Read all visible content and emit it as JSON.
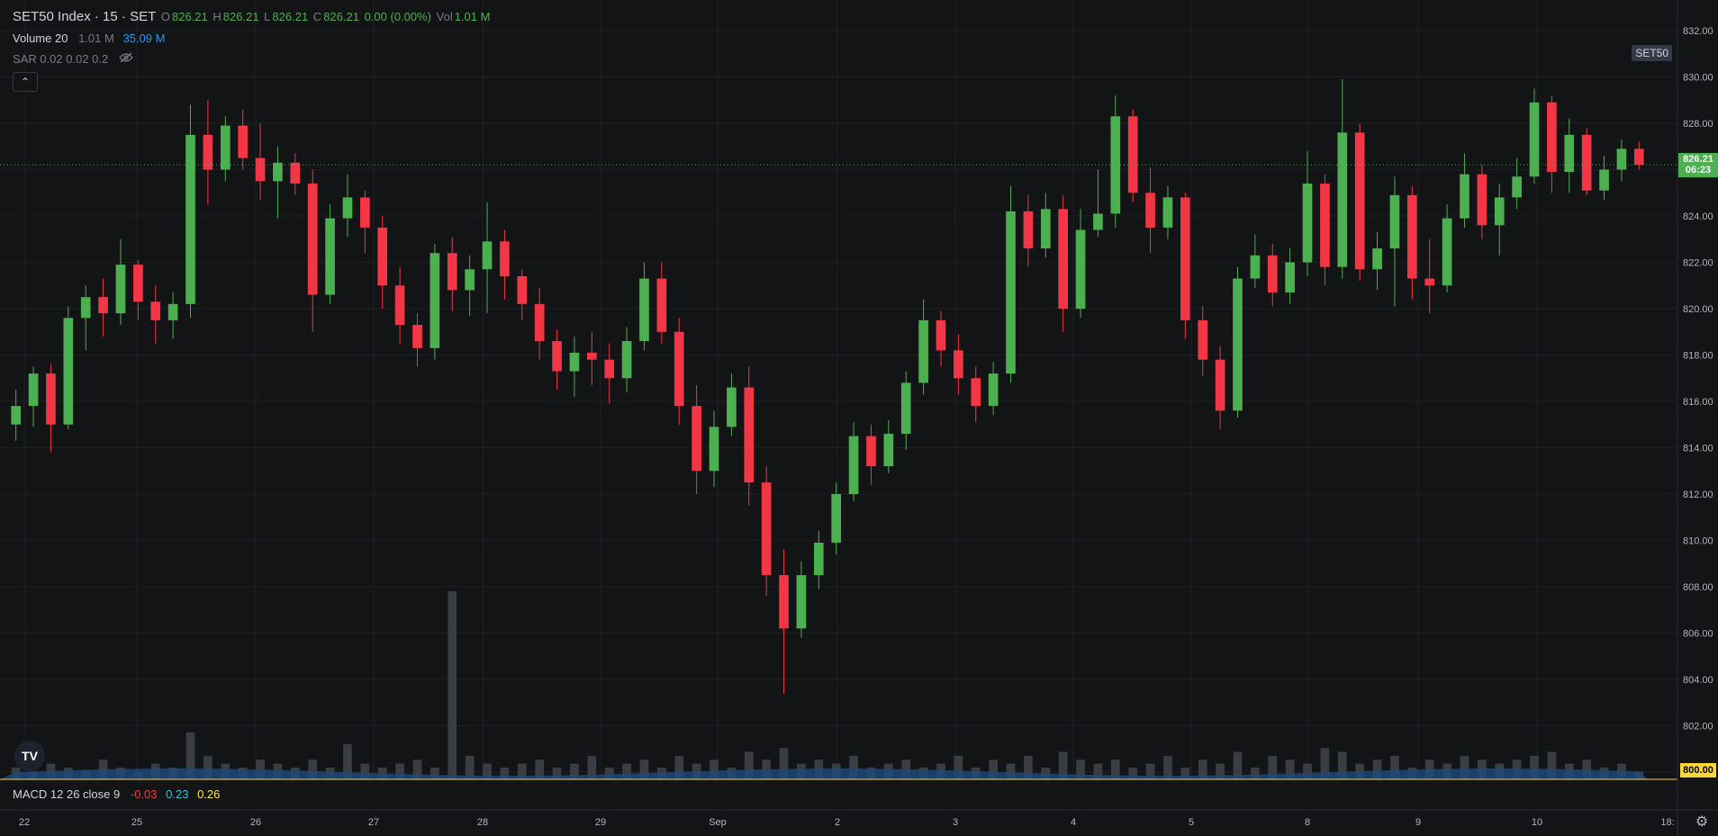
{
  "header": {
    "symbol_title": "SET50 Index · 15 · SET",
    "ohlc": {
      "o_label": "O",
      "o_value": "826.21",
      "h_label": "H",
      "h_value": "826.21",
      "l_label": "L",
      "l_value": "826.21",
      "c_label": "C",
      "c_value": "826.21",
      "change": "0.00 (0.00%)",
      "vol_label": "Vol",
      "vol_value": "1.01 M"
    },
    "volume_indicator": {
      "label": "Volume 20",
      "value1": "1.01 M",
      "value2": "35.09 M"
    },
    "sar_indicator": {
      "label": "SAR 0.02 0.02 0.2"
    },
    "collapse_icon": "chevron-up-icon",
    "symbol_tag": "SET50"
  },
  "macd": {
    "label": "MACD 12 26 close 9",
    "v1": "-0.03",
    "v2": "0.23",
    "v3": "0.26"
  },
  "price_label": {
    "price": "826.21",
    "countdown": "06:23"
  },
  "volume_axis_label": "800.00",
  "colors": {
    "up": "#4caf50",
    "down": "#f23645",
    "volume_ma": "#2962ff",
    "background": "#131416",
    "grid": "#1f2226",
    "accent": "#4caf50"
  },
  "chart_data": {
    "type": "candlestick",
    "title": "SET50 Index · 15 · SET",
    "ylim": [
      800,
      833
    ],
    "yticks": [
      "832.00",
      "830.00",
      "828.00",
      "826.00",
      "824.00",
      "822.00",
      "820.00",
      "818.00",
      "816.00",
      "814.00",
      "812.00",
      "810.00",
      "808.00",
      "806.00",
      "804.00",
      "802.00",
      "800.00"
    ],
    "xticks": [
      "22",
      "25",
      "26",
      "27",
      "28",
      "29",
      "Sep",
      "2",
      "3",
      "4",
      "5",
      "8",
      "9",
      "10",
      "18:"
    ],
    "current_price": 826.21,
    "series": [
      {
        "values": [
          {
            "o": 815.0,
            "h": 816.5,
            "l": 814.3,
            "c": 815.8
          },
          {
            "o": 815.8,
            "h": 817.5,
            "l": 814.9,
            "c": 817.2
          },
          {
            "o": 817.2,
            "h": 817.6,
            "l": 813.8,
            "c": 815.0
          },
          {
            "o": 815.0,
            "h": 820.1,
            "l": 814.8,
            "c": 819.6
          },
          {
            "o": 819.6,
            "h": 821.0,
            "l": 818.2,
            "c": 820.5
          },
          {
            "o": 820.5,
            "h": 821.3,
            "l": 818.8,
            "c": 819.8
          },
          {
            "o": 819.8,
            "h": 823.0,
            "l": 819.3,
            "c": 821.9
          },
          {
            "o": 821.9,
            "h": 822.1,
            "l": 819.5,
            "c": 820.3
          },
          {
            "o": 820.3,
            "h": 821.0,
            "l": 818.5,
            "c": 819.5
          },
          {
            "o": 819.5,
            "h": 820.7,
            "l": 818.7,
            "c": 820.2
          },
          {
            "o": 820.2,
            "h": 828.8,
            "l": 819.6,
            "c": 827.5
          },
          {
            "o": 827.5,
            "h": 829.0,
            "l": 824.5,
            "c": 826.0
          },
          {
            "o": 826.0,
            "h": 828.3,
            "l": 825.5,
            "c": 827.9
          },
          {
            "o": 827.9,
            "h": 828.6,
            "l": 826.0,
            "c": 826.5
          },
          {
            "o": 826.5,
            "h": 828.0,
            "l": 824.7,
            "c": 825.5
          },
          {
            "o": 825.5,
            "h": 827.0,
            "l": 823.9,
            "c": 826.3
          },
          {
            "o": 826.3,
            "h": 826.7,
            "l": 824.9,
            "c": 825.4
          },
          {
            "o": 825.4,
            "h": 826.0,
            "l": 819.0,
            "c": 820.6
          },
          {
            "o": 820.6,
            "h": 824.5,
            "l": 820.2,
            "c": 823.9
          },
          {
            "o": 823.9,
            "h": 825.8,
            "l": 823.1,
            "c": 824.8
          },
          {
            "o": 824.8,
            "h": 825.1,
            "l": 822.4,
            "c": 823.5
          },
          {
            "o": 823.5,
            "h": 824.0,
            "l": 820.0,
            "c": 821.0
          },
          {
            "o": 821.0,
            "h": 821.8,
            "l": 818.5,
            "c": 819.3
          },
          {
            "o": 819.3,
            "h": 819.8,
            "l": 817.5,
            "c": 818.3
          },
          {
            "o": 818.3,
            "h": 822.8,
            "l": 817.8,
            "c": 822.4
          },
          {
            "o": 822.4,
            "h": 823.1,
            "l": 819.9,
            "c": 820.8
          },
          {
            "o": 820.8,
            "h": 822.3,
            "l": 819.7,
            "c": 821.7
          },
          {
            "o": 821.7,
            "h": 824.6,
            "l": 819.8,
            "c": 822.9
          },
          {
            "o": 822.9,
            "h": 823.4,
            "l": 820.4,
            "c": 821.4
          },
          {
            "o": 821.4,
            "h": 821.7,
            "l": 819.5,
            "c": 820.2
          },
          {
            "o": 820.2,
            "h": 820.9,
            "l": 817.8,
            "c": 818.6
          },
          {
            "o": 818.6,
            "h": 819.1,
            "l": 816.5,
            "c": 817.3
          },
          {
            "o": 817.3,
            "h": 818.8,
            "l": 816.2,
            "c": 818.1
          },
          {
            "o": 818.1,
            "h": 819.0,
            "l": 816.7,
            "c": 817.8
          },
          {
            "o": 817.8,
            "h": 818.5,
            "l": 815.9,
            "c": 817.0
          },
          {
            "o": 817.0,
            "h": 819.2,
            "l": 816.4,
            "c": 818.6
          },
          {
            "o": 818.6,
            "h": 822.0,
            "l": 818.2,
            "c": 821.3
          },
          {
            "o": 821.3,
            "h": 822.0,
            "l": 818.5,
            "c": 819.0
          },
          {
            "o": 819.0,
            "h": 819.6,
            "l": 815.0,
            "c": 815.8
          },
          {
            "o": 815.8,
            "h": 816.7,
            "l": 812.0,
            "c": 813.0
          },
          {
            "o": 813.0,
            "h": 815.6,
            "l": 812.3,
            "c": 814.9
          },
          {
            "o": 814.9,
            "h": 817.2,
            "l": 814.5,
            "c": 816.6
          },
          {
            "o": 816.6,
            "h": 817.5,
            "l": 811.5,
            "c": 812.5
          },
          {
            "o": 812.5,
            "h": 813.2,
            "l": 807.6,
            "c": 808.5
          },
          {
            "o": 808.5,
            "h": 809.6,
            "l": 803.4,
            "c": 806.2
          },
          {
            "o": 806.2,
            "h": 809.1,
            "l": 805.8,
            "c": 808.5
          },
          {
            "o": 808.5,
            "h": 810.4,
            "l": 807.9,
            "c": 809.9
          },
          {
            "o": 809.9,
            "h": 812.5,
            "l": 809.4,
            "c": 812.0
          },
          {
            "o": 812.0,
            "h": 815.1,
            "l": 811.7,
            "c": 814.5
          },
          {
            "o": 814.5,
            "h": 815.0,
            "l": 812.4,
            "c": 813.2
          },
          {
            "o": 813.2,
            "h": 815.2,
            "l": 812.9,
            "c": 814.6
          },
          {
            "o": 814.6,
            "h": 817.3,
            "l": 813.9,
            "c": 816.8
          },
          {
            "o": 816.8,
            "h": 820.4,
            "l": 816.3,
            "c": 819.5
          },
          {
            "o": 819.5,
            "h": 819.9,
            "l": 817.5,
            "c": 818.2
          },
          {
            "o": 818.2,
            "h": 818.9,
            "l": 816.3,
            "c": 817.0
          },
          {
            "o": 817.0,
            "h": 817.5,
            "l": 815.1,
            "c": 815.8
          },
          {
            "o": 815.8,
            "h": 817.7,
            "l": 815.4,
            "c": 817.2
          },
          {
            "o": 817.2,
            "h": 825.3,
            "l": 816.8,
            "c": 824.2
          },
          {
            "o": 824.2,
            "h": 824.9,
            "l": 821.8,
            "c": 822.6
          },
          {
            "o": 822.6,
            "h": 825.0,
            "l": 822.2,
            "c": 824.3
          },
          {
            "o": 824.3,
            "h": 824.9,
            "l": 819.0,
            "c": 820.0
          },
          {
            "o": 820.0,
            "h": 824.3,
            "l": 819.6,
            "c": 823.4
          },
          {
            "o": 823.4,
            "h": 826.0,
            "l": 823.1,
            "c": 824.1
          },
          {
            "o": 824.1,
            "h": 829.2,
            "l": 823.5,
            "c": 828.3
          },
          {
            "o": 828.3,
            "h": 828.6,
            "l": 824.6,
            "c": 825.0
          },
          {
            "o": 825.0,
            "h": 826.1,
            "l": 822.4,
            "c": 823.5
          },
          {
            "o": 823.5,
            "h": 825.3,
            "l": 823.0,
            "c": 824.8
          },
          {
            "o": 824.8,
            "h": 825.0,
            "l": 818.7,
            "c": 819.5
          },
          {
            "o": 819.5,
            "h": 820.1,
            "l": 817.1,
            "c": 817.8
          },
          {
            "o": 817.8,
            "h": 818.4,
            "l": 814.8,
            "c": 815.6
          },
          {
            "o": 815.6,
            "h": 821.8,
            "l": 815.3,
            "c": 821.3
          },
          {
            "o": 821.3,
            "h": 823.2,
            "l": 820.9,
            "c": 822.3
          },
          {
            "o": 822.3,
            "h": 822.8,
            "l": 820.1,
            "c": 820.7
          },
          {
            "o": 820.7,
            "h": 822.6,
            "l": 820.2,
            "c": 822.0
          },
          {
            "o": 822.0,
            "h": 826.8,
            "l": 821.4,
            "c": 825.4
          },
          {
            "o": 825.4,
            "h": 825.8,
            "l": 821.0,
            "c": 821.8
          },
          {
            "o": 821.8,
            "h": 829.9,
            "l": 821.3,
            "c": 827.6
          },
          {
            "o": 827.6,
            "h": 828.0,
            "l": 821.2,
            "c": 821.7
          },
          {
            "o": 821.7,
            "h": 823.3,
            "l": 820.8,
            "c": 822.6
          },
          {
            "o": 822.6,
            "h": 825.7,
            "l": 820.1,
            "c": 824.9
          },
          {
            "o": 824.9,
            "h": 825.3,
            "l": 820.4,
            "c": 821.3
          },
          {
            "o": 821.3,
            "h": 823.0,
            "l": 819.8,
            "c": 821.0
          },
          {
            "o": 821.0,
            "h": 824.5,
            "l": 820.7,
            "c": 823.9
          },
          {
            "o": 823.9,
            "h": 826.7,
            "l": 823.5,
            "c": 825.8
          },
          {
            "o": 825.8,
            "h": 826.2,
            "l": 823.0,
            "c": 823.6
          },
          {
            "o": 823.6,
            "h": 825.4,
            "l": 822.3,
            "c": 824.8
          },
          {
            "o": 824.8,
            "h": 826.5,
            "l": 824.3,
            "c": 825.7
          },
          {
            "o": 825.7,
            "h": 829.5,
            "l": 825.4,
            "c": 828.9
          },
          {
            "o": 828.9,
            "h": 829.2,
            "l": 825.0,
            "c": 825.9
          },
          {
            "o": 825.9,
            "h": 828.2,
            "l": 825.0,
            "c": 827.5
          },
          {
            "o": 827.5,
            "h": 827.8,
            "l": 824.9,
            "c": 825.1
          },
          {
            "o": 825.1,
            "h": 826.6,
            "l": 824.7,
            "c": 826.0
          },
          {
            "o": 826.0,
            "h": 827.3,
            "l": 825.5,
            "c": 826.9
          },
          {
            "o": 826.9,
            "h": 827.2,
            "l": 826.0,
            "c": 826.21
          }
        ]
      }
    ],
    "volume": [
      3,
      2,
      4,
      3,
      2,
      5,
      3,
      2,
      4,
      3,
      12,
      6,
      4,
      3,
      5,
      4,
      3,
      5,
      3,
      9,
      4,
      3,
      4,
      5,
      3,
      48,
      6,
      4,
      3,
      4,
      5,
      3,
      4,
      6,
      3,
      4,
      5,
      3,
      6,
      4,
      5,
      3,
      7,
      5,
      8,
      4,
      5,
      4,
      6,
      3,
      4,
      5,
      3,
      4,
      6,
      3,
      5,
      4,
      6,
      3,
      7,
      5,
      4,
      5,
      3,
      4,
      6,
      3,
      5,
      4,
      7,
      3,
      6,
      5,
      4,
      8,
      7,
      4,
      5,
      6,
      3,
      5,
      4,
      6,
      5,
      4,
      5,
      6,
      7,
      4,
      5,
      3,
      4,
      2
    ]
  }
}
